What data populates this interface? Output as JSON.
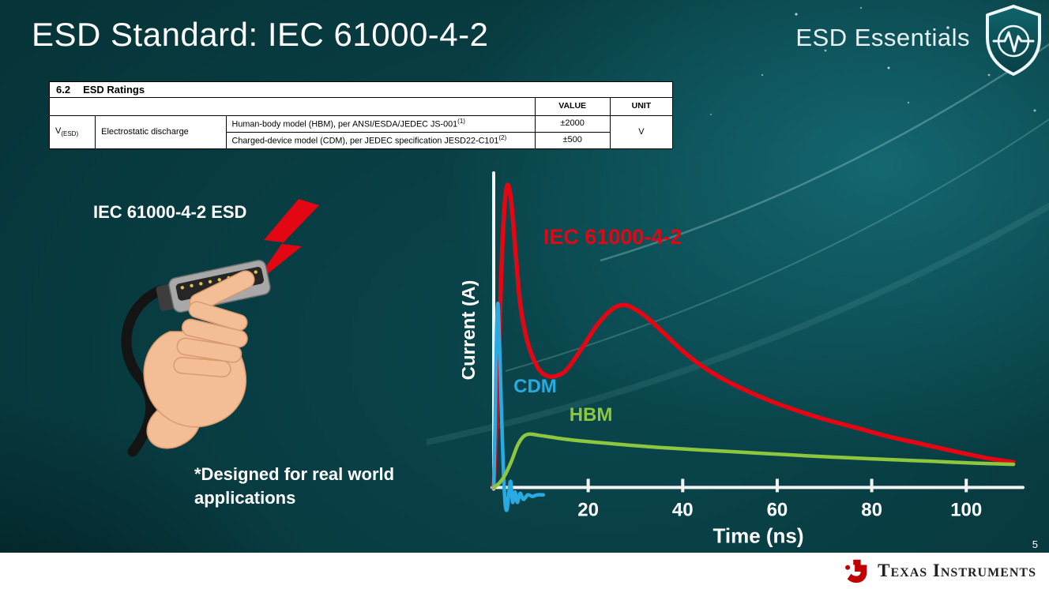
{
  "slide": {
    "title": "ESD Standard: IEC 61000-4-2",
    "brand": "ESD Essentials",
    "page_number": "5",
    "footer_logo": "Texas Instruments"
  },
  "ratings_table": {
    "section_number": "6.2",
    "section_title": "ESD Ratings",
    "value_header": "VALUE",
    "unit_header": "UNIT",
    "symbol_main": "V",
    "symbol_sub": "(ESD)",
    "parameter": "Electrostatic discharge",
    "rows": [
      {
        "description": "Human-body model (HBM), per ANSI/ESDA/JEDEC JS-001",
        "description_sup": "(1)",
        "value": "±2000"
      },
      {
        "description": "Charged-device model (CDM), per JEDEC specification JESD22-C101",
        "description_sup": "(2)",
        "value": "±500"
      }
    ],
    "unit": "V"
  },
  "left_panel": {
    "caption": "IEC 61000-4-2 ESD",
    "note": "*Designed for real world applications"
  },
  "chart_data": {
    "type": "line",
    "title": "",
    "xlabel": "Time (ns)",
    "ylabel": "Current (A)",
    "xlim": [
      0,
      112
    ],
    "ylim": [
      -0.1,
      1.06
    ],
    "xticks": [
      20,
      40,
      60,
      80,
      100
    ],
    "grid": false,
    "legend_position": "inline-labels",
    "axis_color": "#f3f3f3",
    "series": [
      {
        "name": "IEC 61000-4-2",
        "color": "#e30613",
        "stroke_width": 5.5,
        "label_pos": [
          10.5,
          0.82
        ],
        "label_size": 27,
        "x": [
          0,
          0.8,
          1.6,
          2.3,
          3,
          3.8,
          4.6,
          5.6,
          7,
          8.5,
          10,
          11.5,
          13,
          15,
          17,
          19.5,
          22,
          25,
          27.5,
          30,
          33,
          36,
          40,
          44,
          48,
          53,
          58,
          64,
          70,
          77,
          84,
          91,
          98,
          104,
          110
        ],
        "y": [
          0,
          0.3,
          0.72,
          0.95,
          1.02,
          0.95,
          0.8,
          0.62,
          0.5,
          0.43,
          0.39,
          0.375,
          0.375,
          0.39,
          0.43,
          0.49,
          0.55,
          0.6,
          0.615,
          0.6,
          0.565,
          0.52,
          0.46,
          0.41,
          0.37,
          0.33,
          0.295,
          0.26,
          0.23,
          0.2,
          0.17,
          0.145,
          0.12,
          0.1,
          0.085
        ]
      },
      {
        "name": "CDM",
        "color": "#29abe2",
        "stroke_width": 4.5,
        "label_pos": [
          4.2,
          0.32
        ],
        "label_size": 24,
        "x": [
          0,
          0.3,
          0.6,
          0.9,
          1.2,
          1.6,
          2.0,
          2.4,
          2.8,
          3.2,
          3.6,
          4.0,
          4.5,
          5.0,
          5.6,
          6.3,
          7.2,
          8.2,
          9.2,
          10.5
        ],
        "y": [
          0,
          0.22,
          0.52,
          0.62,
          0.5,
          0.28,
          0.08,
          -0.05,
          -0.075,
          -0.02,
          0.02,
          -0.05,
          -0.015,
          -0.05,
          -0.02,
          -0.04,
          -0.025,
          -0.03,
          -0.025,
          -0.025
        ]
      },
      {
        "name": "HBM",
        "color": "#8dc63f",
        "stroke_width": 4.5,
        "label_pos": [
          16,
          0.225
        ],
        "label_size": 24,
        "x": [
          0,
          1.2,
          2.5,
          3.8,
          5,
          6.2,
          7.5,
          9.5,
          12,
          15,
          19,
          24,
          29,
          35,
          42,
          50,
          58,
          66,
          75,
          84,
          93,
          102,
          110
        ],
        "y": [
          0,
          0.015,
          0.045,
          0.09,
          0.14,
          0.17,
          0.18,
          0.176,
          0.17,
          0.163,
          0.156,
          0.149,
          0.142,
          0.135,
          0.128,
          0.121,
          0.114,
          0.107,
          0.1,
          0.094,
          0.088,
          0.082,
          0.078
        ]
      }
    ]
  }
}
